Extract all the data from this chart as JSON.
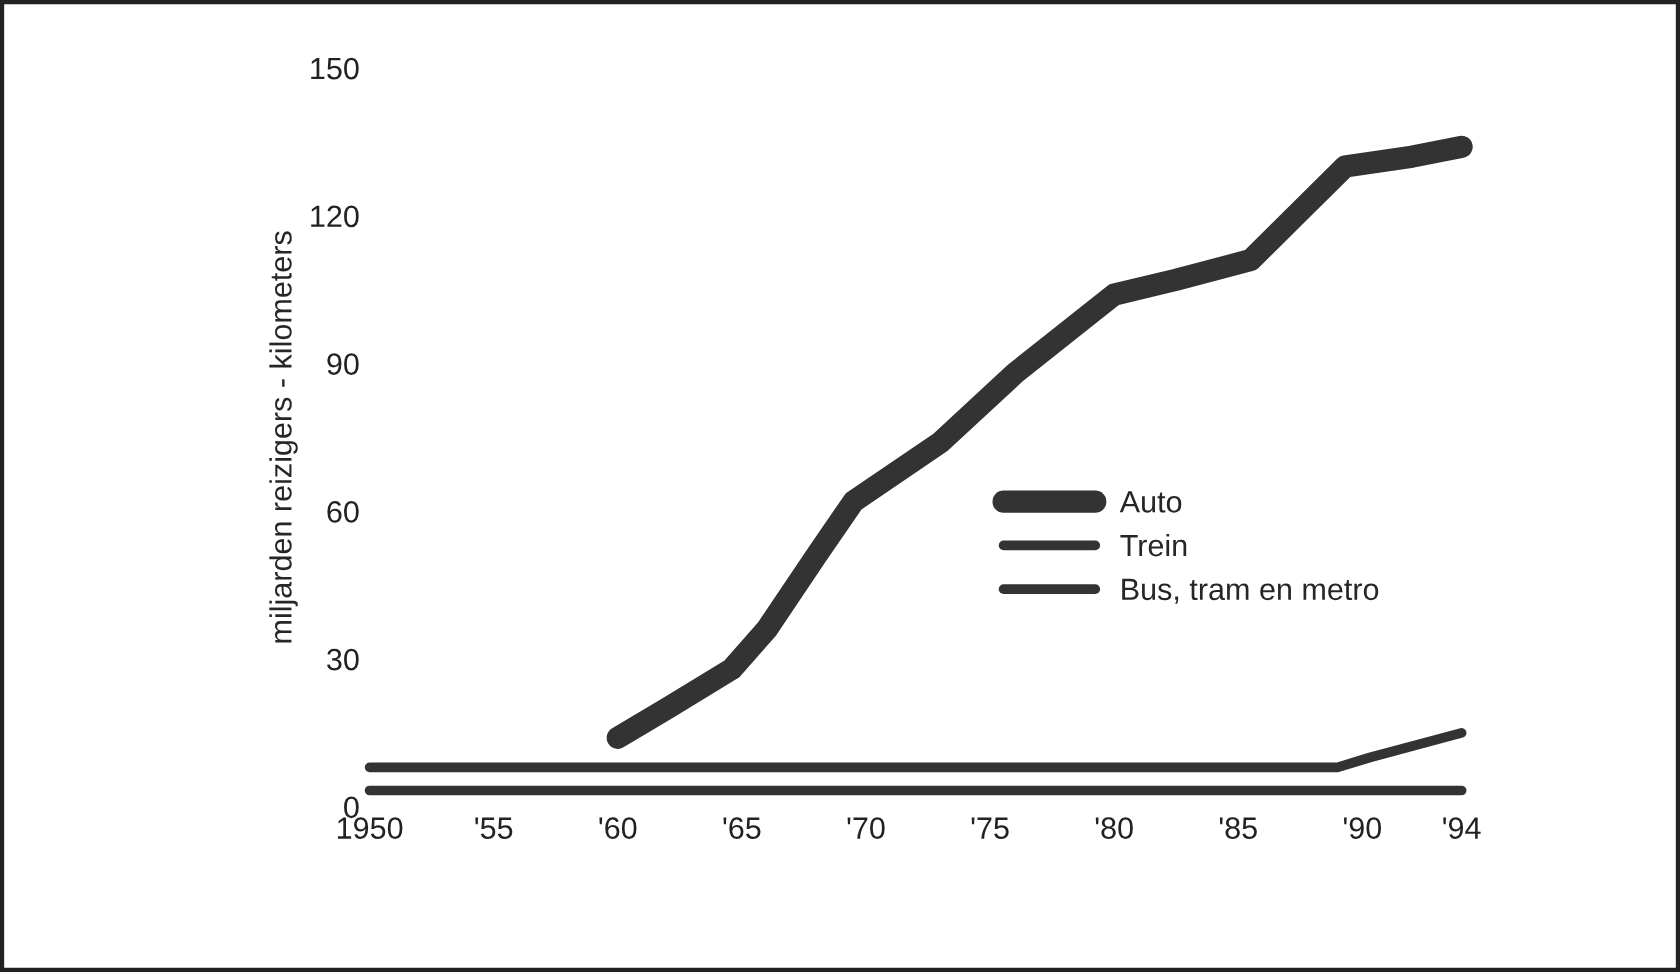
{
  "chart_data": {
    "type": "line",
    "ylabel": "miljarden reizigers - kilometers",
    "series": [
      {
        "name": "Auto",
        "color": "#333333",
        "x": [
          1960,
          1962,
          1964.6,
          1966,
          1968,
          1969.5,
          1973,
          1976,
          1980,
          1982.5,
          1985.5,
          1989.3,
          1992,
          1994
        ],
        "values": [
          14,
          20,
          28,
          36,
          51,
          62,
          74,
          88,
          104,
          107,
          111,
          130,
          132,
          134
        ]
      },
      {
        "name": "Trein",
        "color": "#333333",
        "x": [
          1950,
          1989,
          1990.3,
          1994
        ],
        "values": [
          8,
          8,
          10,
          15
        ]
      },
      {
        "name": "Bus, tram en metro",
        "color": "#333333",
        "x": [
          1950,
          1994
        ],
        "values": [
          3.3,
          3.3
        ]
      }
    ],
    "xlim": [
      1950,
      1994
    ],
    "xticks": [
      1950,
      {
        "value": 1955,
        "label": "'55"
      },
      {
        "value": 1960,
        "label": "'60"
      },
      {
        "value": 1965,
        "label": "'65"
      },
      {
        "value": 1970,
        "label": "'70"
      },
      {
        "value": 1975,
        "label": "'75"
      },
      {
        "value": 1980,
        "label": "'80"
      },
      {
        "value": 1985,
        "label": "'85"
      },
      {
        "value": 1990,
        "label": "'90"
      },
      {
        "value": 1994,
        "label": "'94"
      }
    ],
    "ylim": [
      0,
      150
    ],
    "yticks": [
      0,
      30,
      60,
      90,
      120,
      150
    ],
    "grid": false,
    "legend": "center right",
    "line_style": "solid"
  }
}
